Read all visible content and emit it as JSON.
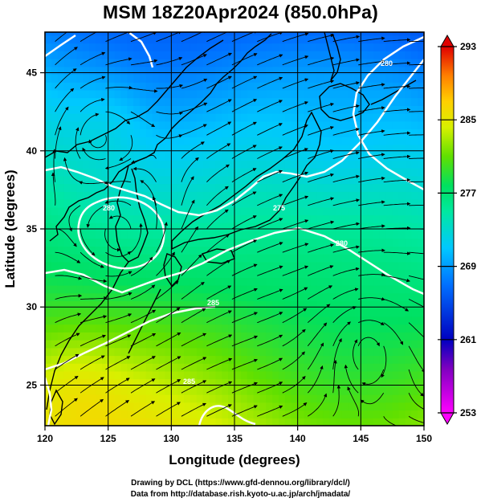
{
  "title": "MSM 18Z20Apr2024 (850.0hPa)",
  "xaxis": {
    "label": "Longitude (degrees)",
    "ticks": [
      "120",
      "125",
      "130",
      "135",
      "140",
      "145",
      "150"
    ]
  },
  "yaxis": {
    "label": "Latitude  (degrees)",
    "ticks": [
      "25",
      "30",
      "35",
      "40",
      "45"
    ]
  },
  "colorbar": {
    "ticks": [
      "293",
      "285",
      "277",
      "269",
      "261",
      "253"
    ]
  },
  "contour_labels": [
    "285",
    "285",
    "280",
    "280",
    "280",
    "275"
  ],
  "footer": {
    "line1": "Drawing by DCL (https://www.gfd-dennou.org/library/dcl/)",
    "line2": "Data from http://database.rish.kyoto-u.ac.jp/arch/jmadata/"
  },
  "chart_data": {
    "type": "heatmap",
    "title": "MSM 18Z20Apr2024 (850.0hPa)",
    "xlabel": "Longitude (degrees)",
    "ylabel": "Latitude  (degrees)",
    "xlim": [
      120,
      150
    ],
    "ylim": [
      22.4,
      47.6
    ],
    "colorbar_range": [
      253,
      293
    ],
    "colorbar_ticks": [
      293,
      285,
      277,
      269,
      261,
      253
    ],
    "contour_levels": [
      275,
      280,
      285
    ],
    "grid": true,
    "overlay": "streamlines",
    "colors": {
      "ramp_low": "#ff00ff",
      "ramp_mid_low": "#0000c0",
      "ramp_mid": "#00c8ff",
      "ramp_green": "#00e070",
      "ramp_yellow": "#f0f000",
      "ramp_orange": "#ff8000",
      "ramp_high": "#e00000",
      "contour": "#ffffff",
      "coastline": "#000000"
    }
  }
}
